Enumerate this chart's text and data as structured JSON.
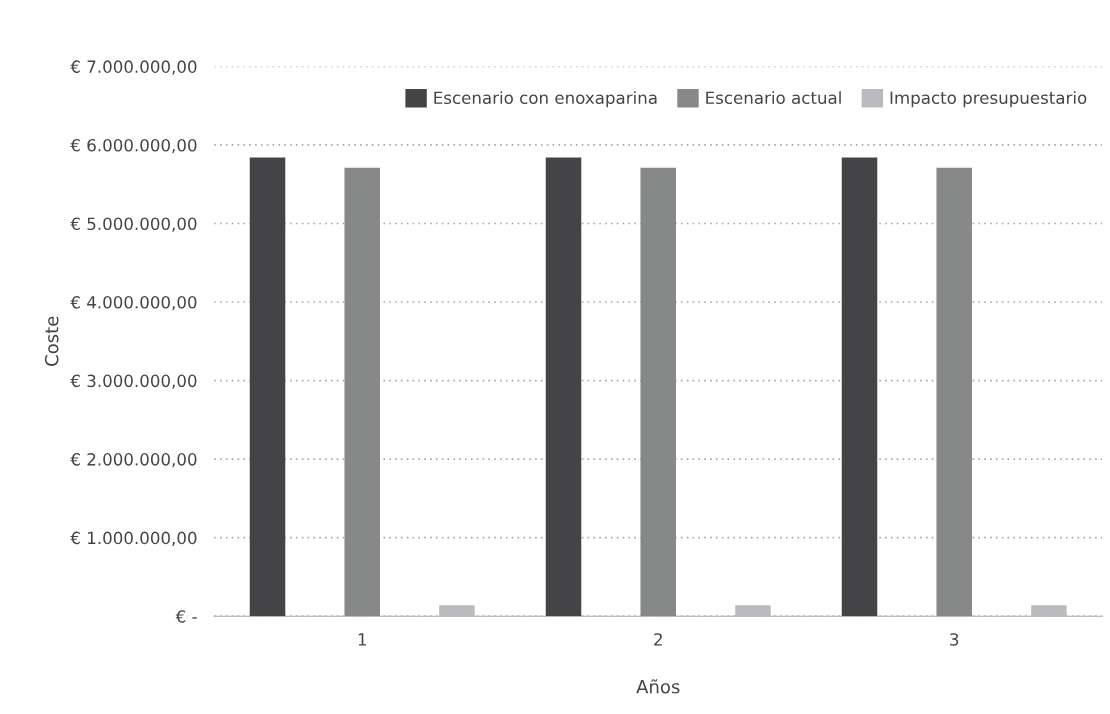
{
  "chart_data": {
    "type": "bar",
    "xlabel": "Años",
    "ylabel": "Coste",
    "categories": [
      "1",
      "2",
      "3"
    ],
    "series": [
      {
        "name": "Escenario con enoxaparina",
        "color": "#444446",
        "values": [
          5840000,
          5840000,
          5840000
        ]
      },
      {
        "name": "Escenario actual",
        "color": "#868988",
        "values": [
          5710000,
          5710000,
          5710000
        ]
      },
      {
        "name": "Impacto presupuestario",
        "color": "#b9bbbf",
        "values": [
          140000,
          140000,
          140000
        ]
      }
    ],
    "ylim": [
      0,
      7000000
    ],
    "yticks": [
      {
        "value": 0,
        "label": "€ -"
      },
      {
        "value": 1000000,
        "label": "€ 1.000.000,00"
      },
      {
        "value": 2000000,
        "label": "€ 2.000.000,00"
      },
      {
        "value": 3000000,
        "label": "€ 3.000.000,00"
      },
      {
        "value": 4000000,
        "label": "€ 4.000.000,00"
      },
      {
        "value": 5000000,
        "label": "€ 5.000.000,00"
      },
      {
        "value": 6000000,
        "label": "€ 6.000.000,00"
      },
      {
        "value": 7000000,
        "label": "€ 7.000.000,00"
      }
    ],
    "grid": "y",
    "legend": "top right"
  }
}
